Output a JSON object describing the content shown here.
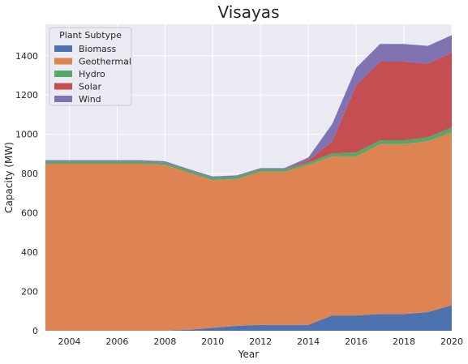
{
  "chart_data": {
    "type": "area",
    "stacked": true,
    "title": "Visayas",
    "xlabel": "Year",
    "ylabel": "Capacity (MW)",
    "xlim": [
      2003,
      2020
    ],
    "ylim": [
      0,
      1560
    ],
    "x_ticks": [
      2004,
      2006,
      2008,
      2010,
      2012,
      2014,
      2016,
      2018,
      2020
    ],
    "y_ticks": [
      0,
      200,
      400,
      600,
      800,
      1000,
      1200,
      1400
    ],
    "grid": true,
    "legend": {
      "title": "Plant Subtype",
      "placement": "top-left"
    },
    "x": [
      2003,
      2004,
      2005,
      2006,
      2007,
      2008,
      2009,
      2010,
      2011,
      2012,
      2013,
      2014,
      2015,
      2016,
      2017,
      2018,
      2019,
      2020
    ],
    "series": [
      {
        "name": "Biomass",
        "color": "#4c72b0",
        "values": [
          0,
          0,
          0,
          0,
          0,
          0,
          5,
          15,
          25,
          30,
          30,
          30,
          78,
          78,
          85,
          85,
          95,
          130
        ]
      },
      {
        "name": "Geothermal",
        "color": "#dd8452",
        "values": [
          850,
          850,
          850,
          850,
          850,
          845,
          800,
          752,
          748,
          780,
          780,
          815,
          810,
          810,
          865,
          865,
          870,
          880
        ]
      },
      {
        "name": "Hydro",
        "color": "#55a868",
        "values": [
          12,
          12,
          12,
          12,
          12,
          12,
          12,
          12,
          12,
          12,
          12,
          12,
          15,
          20,
          20,
          20,
          20,
          25
        ]
      },
      {
        "name": "Solar",
        "color": "#c44e52",
        "values": [
          0,
          0,
          0,
          0,
          0,
          0,
          0,
          0,
          0,
          0,
          0,
          10,
          60,
          340,
          400,
          400,
          375,
          380
        ]
      },
      {
        "name": "Wind",
        "color": "#8172b2",
        "values": [
          6,
          6,
          6,
          6,
          6,
          6,
          6,
          6,
          6,
          6,
          6,
          15,
          90,
          90,
          90,
          90,
          90,
          90
        ]
      }
    ]
  }
}
